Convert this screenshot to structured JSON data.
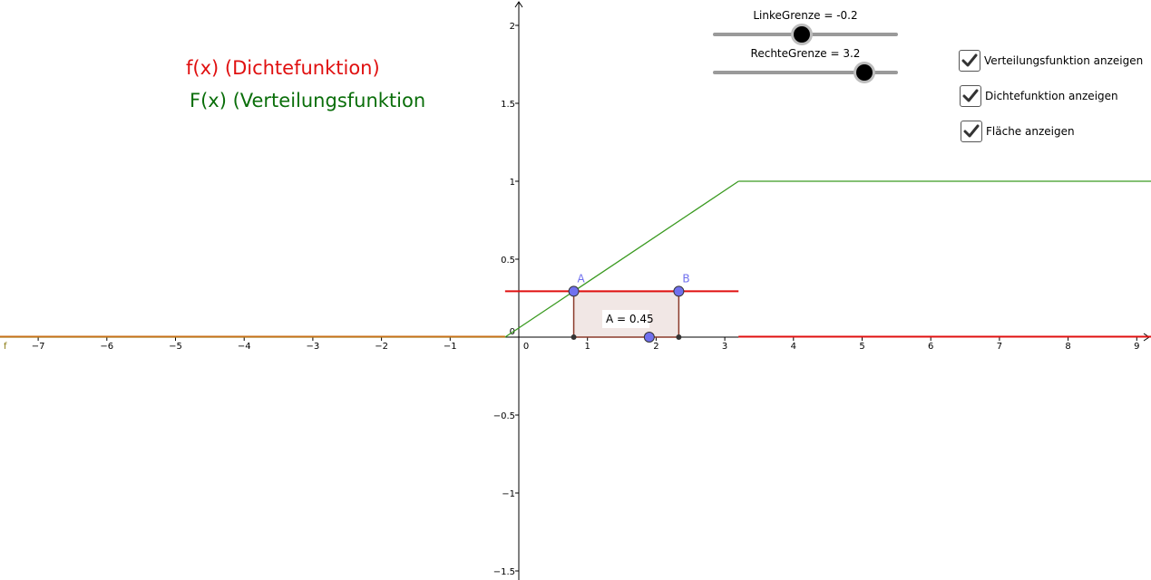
{
  "legend": {
    "density_label": "f(x) (Dichtefunktion)",
    "distribution_label": "F(x) (Verteilungsfunktion",
    "density_color": "#e01010",
    "distribution_color": "#0a6e0a"
  },
  "sliders": {
    "left": {
      "label": "LinkeGrenze = -0.2",
      "value": -0.2,
      "min": -5,
      "max": 5
    },
    "right": {
      "label": "RechteGrenze = 3.2",
      "value": 3.2,
      "min": -5,
      "max": 5
    }
  },
  "checkboxes": [
    {
      "label": "Verteilungsfunktion anzeigen",
      "checked": true
    },
    {
      "label": "Dichtefunktion anzeigen",
      "checked": true
    },
    {
      "label": "Fläche anzeigen",
      "checked": true
    }
  ],
  "graph": {
    "x_ticks": [
      "−7",
      "−6",
      "−5",
      "−4",
      "−3",
      "−2",
      "−1",
      "0",
      "1",
      "2",
      "3",
      "4",
      "5",
      "6",
      "7",
      "8",
      "9"
    ],
    "y_ticks": [
      "−1.5",
      "−1",
      "−0.5",
      "0",
      "0.5",
      "1",
      "1.5",
      "2"
    ],
    "function_name": "f",
    "point_a": {
      "name": "A",
      "x": 0.8,
      "y": 0.294
    },
    "point_b": {
      "name": "B",
      "x": 2.33,
      "y": 0.294
    },
    "point_mid": {
      "x": 1.9,
      "y": 0
    },
    "area_label": "A = 0.45",
    "area_color": "#8b3a2a",
    "point_color": "#7070ee"
  }
}
